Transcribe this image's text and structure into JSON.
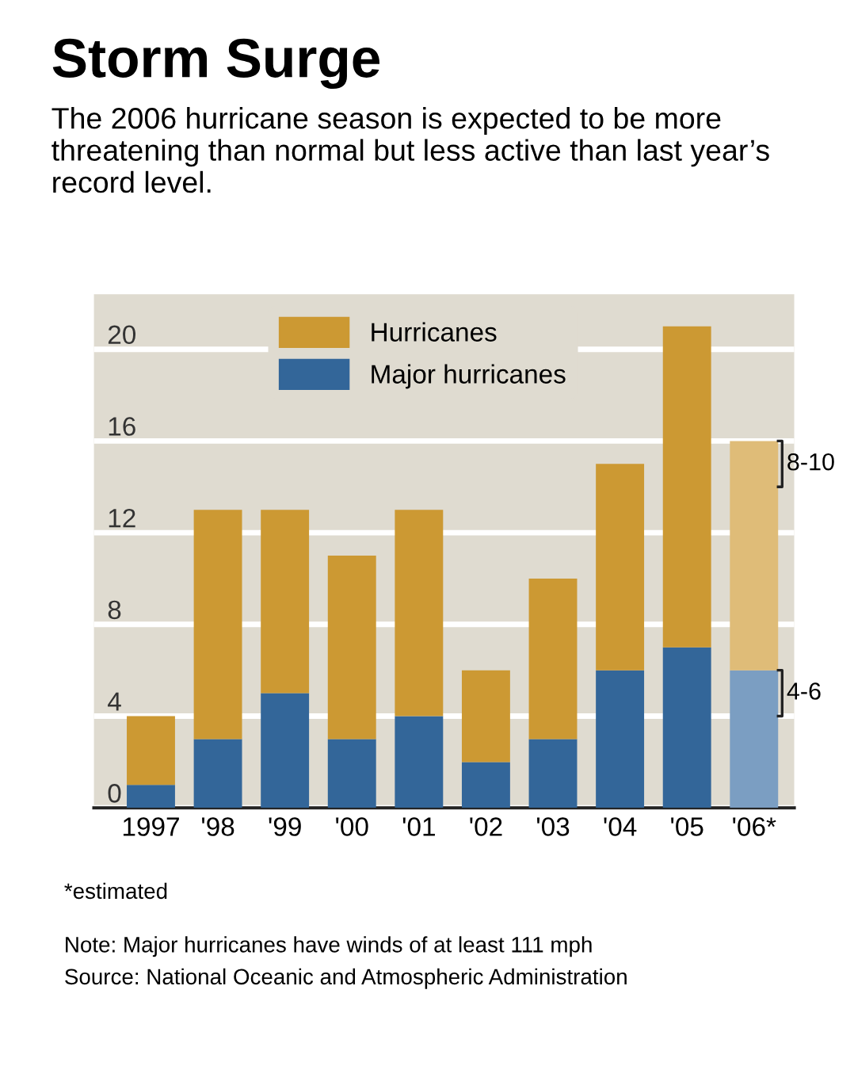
{
  "chart_data": {
    "type": "bar",
    "stacked": true,
    "title": "Storm Surge",
    "subtitle": "The 2006 hurricane season is expected to be more threatening than normal but less active than last year’s record level.",
    "categories": [
      "1997",
      "'98",
      "'99",
      "'00",
      "'01",
      "'02",
      "'03",
      "'04",
      "'05",
      "'06*"
    ],
    "series": [
      {
        "name": "Major hurricanes",
        "color": "#336699",
        "colors": [
          "#336699",
          "#336699",
          "#336699",
          "#336699",
          "#336699",
          "#336699",
          "#336699",
          "#336699",
          "#336699",
          "#7b9ec2"
        ],
        "values": [
          1,
          3,
          5,
          3,
          4,
          2,
          3,
          6,
          7,
          6
        ]
      },
      {
        "name": "Hurricanes",
        "color": "#cc9933",
        "colors": [
          "#cc9933",
          "#cc9933",
          "#cc9933",
          "#cc9933",
          "#cc9933",
          "#cc9933",
          "#cc9933",
          "#cc9933",
          "#cc9933",
          "#dfbc78"
        ],
        "values": [
          3,
          10,
          8,
          8,
          9,
          4,
          7,
          9,
          14,
          10
        ]
      }
    ],
    "ylim": [
      0,
      22.4
    ],
    "yticks": [
      0,
      4,
      8,
      12,
      16,
      20
    ],
    "grid": "y",
    "legend": "top",
    "annotations": [
      {
        "text": "8-10",
        "x": "'06*",
        "y": 16
      },
      {
        "text": "4-6",
        "x": "'06*",
        "y": 6
      },
      "*estimated",
      "Note: Major hurricanes have winds of at least 111 mph",
      "Source: National Oceanic and Atmospheric Administration"
    ]
  }
}
